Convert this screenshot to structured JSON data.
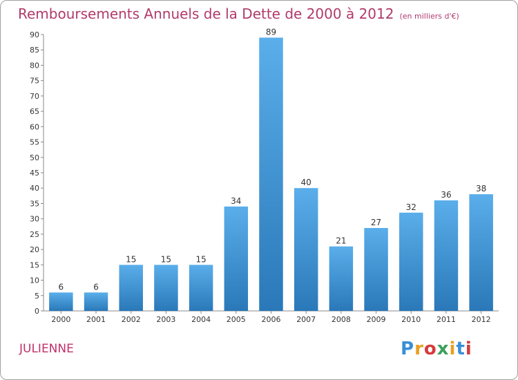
{
  "header": {
    "title": "Remboursements Annuels de la Dette de 2000 à 2012",
    "unit": "(en milliers d'€)"
  },
  "footer": {
    "city": "JULIENNE",
    "logo": "Proxiti",
    "logo_colors": [
      "#3a8fd6",
      "#e8a020",
      "#d63a3a",
      "#3aa05a",
      "#e8a020",
      "#3a8fd6",
      "#d63a3a"
    ]
  },
  "chart_data": {
    "type": "bar",
    "title": "Remboursements Annuels de la Dette de 2000 à 2012",
    "xlabel": "",
    "ylabel": "",
    "categories": [
      "2000",
      "2001",
      "2002",
      "2003",
      "2004",
      "2005",
      "2006",
      "2007",
      "2008",
      "2009",
      "2010",
      "2011",
      "2012"
    ],
    "values": [
      6,
      6,
      15,
      15,
      15,
      34,
      89,
      40,
      21,
      27,
      32,
      36,
      38
    ],
    "ylim": [
      0,
      90
    ],
    "yticks": [
      0,
      5,
      10,
      15,
      20,
      25,
      30,
      35,
      40,
      45,
      50,
      55,
      60,
      65,
      70,
      75,
      80,
      85,
      90
    ],
    "grid": false,
    "bar_color_top": "#5aaeea",
    "bar_color_bottom": "#2a78b8"
  }
}
